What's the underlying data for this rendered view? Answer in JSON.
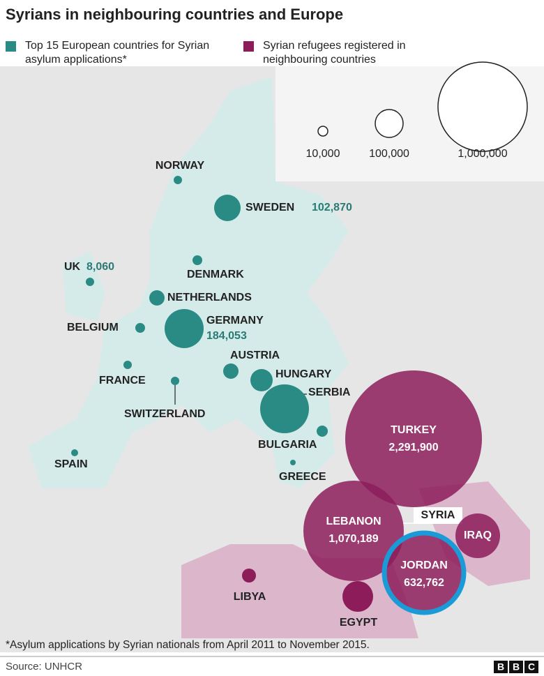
{
  "title": "Syrians in neighbouring countries and Europe",
  "legend": {
    "europe": {
      "label": "Top 15 European countries for Syrian asylum applications*",
      "color": "#2a8a84"
    },
    "neighbours": {
      "label": "Syrian refugees registered in neighbouring countries",
      "color": "#8c1d5a"
    },
    "sizes": [
      "10,000",
      "100,000",
      "1,000,000"
    ]
  },
  "countries": [
    {
      "label": "NORWAY",
      "color": "#2a8a84"
    },
    {
      "label": "SWEDEN",
      "value": "102,870",
      "color": "#2a8a84"
    },
    {
      "label": "UK",
      "value": "8,060",
      "color": "#2a8a84"
    },
    {
      "label": "DENMARK",
      "color": "#2a8a84"
    },
    {
      "label": "NETHERLANDS",
      "color": "#2a8a84"
    },
    {
      "label": "BELGIUM",
      "color": "#2a8a84"
    },
    {
      "label": "GERMANY",
      "value": "184,053",
      "color": "#2a8a84"
    },
    {
      "label": "FRANCE",
      "color": "#2a8a84"
    },
    {
      "label": "AUSTRIA",
      "color": "#2a8a84"
    },
    {
      "label": "SWITZERLAND",
      "color": "#2a8a84"
    },
    {
      "label": "HUNGARY",
      "color": "#2a8a84"
    },
    {
      "label": "SERBIA",
      "color": "#2a8a84"
    },
    {
      "label": "BULGARIA",
      "color": "#2a8a84"
    },
    {
      "label": "SPAIN",
      "color": "#2a8a84"
    },
    {
      "label": "GREECE",
      "color": "#2a8a84"
    },
    {
      "label": "TURKEY",
      "value": "2,291,900",
      "color": "#8c1d5a"
    },
    {
      "label": "LEBANON",
      "value": "1,070,189",
      "color": "#8c1d5a"
    },
    {
      "label": "SYRIA"
    },
    {
      "label": "IRAQ",
      "color": "#8c1d5a"
    },
    {
      "label": "JORDAN",
      "value": "632,762",
      "color": "#8c1d5a"
    },
    {
      "label": "LIBYA",
      "color": "#8c1d5a"
    },
    {
      "label": "EGYPT",
      "color": "#8c1d5a"
    }
  ],
  "footnote": "*Asylum applications by Syrian nationals from April 2011 to November 2015.",
  "source": "Source: UNHCR",
  "logo": [
    "B",
    "B",
    "C"
  ]
}
